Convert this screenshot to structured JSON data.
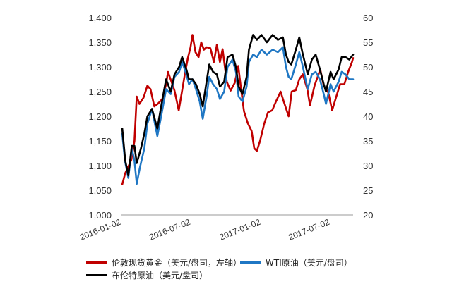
{
  "chart_data": {
    "type": "line",
    "left_axis": {
      "ylim": [
        1000,
        1400
      ],
      "ticks": [
        "1,000",
        "1,050",
        "1,100",
        "1,150",
        "1,200",
        "1,250",
        "1,300",
        "1,350",
        "1,400"
      ]
    },
    "right_axis": {
      "ylim": [
        20,
        60
      ],
      "ticks": [
        "20",
        "25",
        "30",
        "35",
        "40",
        "45",
        "50",
        "55",
        "60"
      ]
    },
    "x_ticks": [
      "2016-01-02",
      "2016-07-02",
      "2017-01-02",
      "2017-07-02"
    ],
    "x_range": [
      "2016-01-02",
      "2017-08-31"
    ],
    "grid": false,
    "legend_position": "bottom",
    "series": [
      {
        "name": "伦敦现货黄金（美元/盘司，左轴）",
        "axis": "left",
        "color": "#c00000",
        "points": [
          [
            "2016-01-04",
            1062
          ],
          [
            "2016-01-12",
            1085
          ],
          [
            "2016-01-20",
            1098
          ],
          [
            "2016-01-28",
            1112
          ],
          [
            "2016-02-05",
            1150
          ],
          [
            "2016-02-11",
            1240
          ],
          [
            "2016-02-18",
            1225
          ],
          [
            "2016-02-29",
            1238
          ],
          [
            "2016-03-10",
            1262
          ],
          [
            "2016-03-18",
            1255
          ],
          [
            "2016-03-28",
            1220
          ],
          [
            "2016-04-06",
            1225
          ],
          [
            "2016-04-18",
            1235
          ],
          [
            "2016-04-28",
            1265
          ],
          [
            "2016-05-03",
            1290
          ],
          [
            "2016-05-12",
            1270
          ],
          [
            "2016-05-20",
            1252
          ],
          [
            "2016-05-31",
            1212
          ],
          [
            "2016-06-08",
            1248
          ],
          [
            "2016-06-16",
            1285
          ],
          [
            "2016-06-24",
            1318
          ],
          [
            "2016-07-01",
            1340
          ],
          [
            "2016-07-06",
            1365
          ],
          [
            "2016-07-14",
            1330
          ],
          [
            "2016-07-22",
            1320
          ],
          [
            "2016-07-29",
            1350
          ],
          [
            "2016-08-05",
            1335
          ],
          [
            "2016-08-12",
            1340
          ],
          [
            "2016-08-22",
            1338
          ],
          [
            "2016-08-31",
            1310
          ],
          [
            "2016-09-08",
            1345
          ],
          [
            "2016-09-16",
            1310
          ],
          [
            "2016-09-23",
            1336
          ],
          [
            "2016-10-04",
            1270
          ],
          [
            "2016-10-14",
            1252
          ],
          [
            "2016-10-25",
            1268
          ],
          [
            "2016-11-03",
            1302
          ],
          [
            "2016-11-10",
            1258
          ],
          [
            "2016-11-18",
            1210
          ],
          [
            "2016-11-28",
            1186
          ],
          [
            "2016-12-08",
            1170
          ],
          [
            "2016-12-15",
            1135
          ],
          [
            "2016-12-22",
            1130
          ],
          [
            "2016-12-30",
            1150
          ],
          [
            "2017-01-10",
            1185
          ],
          [
            "2017-01-20",
            1208
          ],
          [
            "2017-01-31",
            1212
          ],
          [
            "2017-02-10",
            1230
          ],
          [
            "2017-02-22",
            1250
          ],
          [
            "2017-03-03",
            1228
          ],
          [
            "2017-03-15",
            1200
          ],
          [
            "2017-03-23",
            1250
          ],
          [
            "2017-04-03",
            1253
          ],
          [
            "2017-04-12",
            1275
          ],
          [
            "2017-04-21",
            1285
          ],
          [
            "2017-05-03",
            1255
          ],
          [
            "2017-05-10",
            1222
          ],
          [
            "2017-05-22",
            1262
          ],
          [
            "2017-06-06",
            1295
          ],
          [
            "2017-06-15",
            1262
          ],
          [
            "2017-06-27",
            1248
          ],
          [
            "2017-07-07",
            1212
          ],
          [
            "2017-07-18",
            1240
          ],
          [
            "2017-07-28",
            1265
          ],
          [
            "2017-08-08",
            1265
          ],
          [
            "2017-08-18",
            1290
          ],
          [
            "2017-08-28",
            1310
          ],
          [
            "2017-08-31",
            1318
          ]
        ]
      },
      {
        "name": "WTI原油（美元/盘司）",
        "axis": "right",
        "color": "#1f77c4",
        "points": [
          [
            "2016-01-04",
            36.5
          ],
          [
            "2016-01-11",
            31
          ],
          [
            "2016-01-20",
            27.5
          ],
          [
            "2016-01-29",
            33.5
          ],
          [
            "2016-02-05",
            31
          ],
          [
            "2016-02-11",
            26.3
          ],
          [
            "2016-02-19",
            29.5
          ],
          [
            "2016-03-02",
            33.5
          ],
          [
            "2016-03-10",
            38.5
          ],
          [
            "2016-03-22",
            41.5
          ],
          [
            "2016-04-05",
            36
          ],
          [
            "2016-04-15",
            40
          ],
          [
            "2016-04-28",
            45.5
          ],
          [
            "2016-05-10",
            44.5
          ],
          [
            "2016-05-20",
            48
          ],
          [
            "2016-06-01",
            49
          ],
          [
            "2016-06-09",
            51
          ],
          [
            "2016-06-20",
            48.5
          ],
          [
            "2016-06-27",
            46.5
          ],
          [
            "2016-07-06",
            47.5
          ],
          [
            "2016-07-15",
            45.5
          ],
          [
            "2016-07-25",
            43
          ],
          [
            "2016-08-02",
            39.5
          ],
          [
            "2016-08-12",
            44
          ],
          [
            "2016-08-19",
            48
          ],
          [
            "2016-08-29",
            46.5
          ],
          [
            "2016-09-08",
            45.5
          ],
          [
            "2016-09-16",
            43.5
          ],
          [
            "2016-09-27",
            45
          ],
          [
            "2016-10-06",
            50
          ],
          [
            "2016-10-19",
            51.5
          ],
          [
            "2016-10-28",
            49
          ],
          [
            "2016-11-04",
            44
          ],
          [
            "2016-11-14",
            43
          ],
          [
            "2016-11-25",
            46
          ],
          [
            "2016-12-01",
            51
          ],
          [
            "2016-12-12",
            52.5
          ],
          [
            "2016-12-22",
            52
          ],
          [
            "2017-01-03",
            53.5
          ],
          [
            "2017-01-17",
            52.5
          ],
          [
            "2017-02-01",
            53.5
          ],
          [
            "2017-02-15",
            53
          ],
          [
            "2017-02-28",
            54
          ],
          [
            "2017-03-08",
            50
          ],
          [
            "2017-03-15",
            48
          ],
          [
            "2017-03-22",
            47.5
          ],
          [
            "2017-04-03",
            50.5
          ],
          [
            "2017-04-12",
            53
          ],
          [
            "2017-04-20",
            50.5
          ],
          [
            "2017-05-04",
            45.5
          ],
          [
            "2017-05-15",
            48.5
          ],
          [
            "2017-05-25",
            49
          ],
          [
            "2017-06-05",
            47.5
          ],
          [
            "2017-06-15",
            44.5
          ],
          [
            "2017-06-21",
            42.5
          ],
          [
            "2017-07-03",
            46.5
          ],
          [
            "2017-07-11",
            45
          ],
          [
            "2017-07-24",
            47
          ],
          [
            "2017-08-01",
            49
          ],
          [
            "2017-08-11",
            48.5
          ],
          [
            "2017-08-21",
            47.5
          ],
          [
            "2017-08-31",
            47.5
          ]
        ]
      },
      {
        "name": "布伦特原油（美元/盘司）",
        "axis": "right",
        "color": "#000000",
        "points": [
          [
            "2016-01-04",
            37.5
          ],
          [
            "2016-01-12",
            31
          ],
          [
            "2016-01-20",
            28
          ],
          [
            "2016-01-29",
            34
          ],
          [
            "2016-02-05",
            34
          ],
          [
            "2016-02-11",
            30.5
          ],
          [
            "2016-02-22",
            33.5
          ],
          [
            "2016-03-02",
            36.5
          ],
          [
            "2016-03-10",
            40
          ],
          [
            "2016-03-22",
            41.5
          ],
          [
            "2016-04-05",
            37.5
          ],
          [
            "2016-04-15",
            42
          ],
          [
            "2016-04-28",
            47.5
          ],
          [
            "2016-05-10",
            45
          ],
          [
            "2016-05-20",
            48.5
          ],
          [
            "2016-06-01",
            50
          ],
          [
            "2016-06-09",
            52
          ],
          [
            "2016-06-20",
            49.5
          ],
          [
            "2016-06-27",
            47.5
          ],
          [
            "2016-07-06",
            47.5
          ],
          [
            "2016-07-15",
            46.5
          ],
          [
            "2016-07-25",
            44.5
          ],
          [
            "2016-08-02",
            42
          ],
          [
            "2016-08-12",
            47
          ],
          [
            "2016-08-19",
            50.5
          ],
          [
            "2016-08-29",
            49
          ],
          [
            "2016-09-08",
            48.5
          ],
          [
            "2016-09-16",
            46
          ],
          [
            "2016-09-27",
            47
          ],
          [
            "2016-10-06",
            52
          ],
          [
            "2016-10-19",
            52.5
          ],
          [
            "2016-10-28",
            50
          ],
          [
            "2016-11-04",
            46
          ],
          [
            "2016-11-14",
            44.5
          ],
          [
            "2016-11-25",
            48
          ],
          [
            "2016-12-01",
            53.5
          ],
          [
            "2016-12-12",
            56.5
          ],
          [
            "2016-12-22",
            55.5
          ],
          [
            "2017-01-03",
            56.5
          ],
          [
            "2017-01-17",
            55
          ],
          [
            "2017-02-01",
            56.5
          ],
          [
            "2017-02-15",
            55.5
          ],
          [
            "2017-02-28",
            56
          ],
          [
            "2017-03-08",
            52.5
          ],
          [
            "2017-03-15",
            51
          ],
          [
            "2017-03-22",
            50.5
          ],
          [
            "2017-04-03",
            53.5
          ],
          [
            "2017-04-12",
            56
          ],
          [
            "2017-04-20",
            53
          ],
          [
            "2017-05-04",
            48.5
          ],
          [
            "2017-05-15",
            51.5
          ],
          [
            "2017-05-25",
            52.5
          ],
          [
            "2017-06-05",
            49.5
          ],
          [
            "2017-06-15",
            46.5
          ],
          [
            "2017-06-21",
            45
          ],
          [
            "2017-07-03",
            49
          ],
          [
            "2017-07-11",
            47.5
          ],
          [
            "2017-07-24",
            49.5
          ],
          [
            "2017-08-01",
            52
          ],
          [
            "2017-08-11",
            52
          ],
          [
            "2017-08-21",
            51.5
          ],
          [
            "2017-08-31",
            52.5
          ]
        ]
      }
    ]
  }
}
